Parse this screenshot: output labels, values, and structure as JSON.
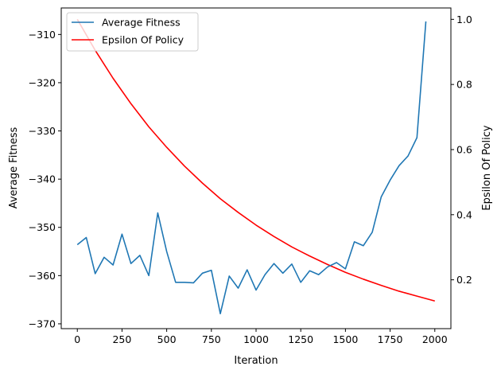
{
  "chart_data": {
    "type": "line",
    "xlabel": "Iteration",
    "ylabel_left": "Average Fitness",
    "ylabel_right": "Epsilon Of Policy",
    "xlim": [
      -90,
      2090
    ],
    "ylim_left": [
      -371,
      -304.5
    ],
    "ylim_right": [
      0.05,
      1.035
    ],
    "x_ticks": [
      0,
      250,
      500,
      750,
      1000,
      1250,
      1500,
      1750,
      2000
    ],
    "y_left_ticks": [
      -370,
      -360,
      -350,
      -340,
      -330,
      -320,
      -310
    ],
    "y_right_ticks": [
      0.2,
      0.4,
      0.6,
      0.8,
      1.0
    ],
    "legend_position": "top-left",
    "series": [
      {
        "name": "Average Fitness",
        "color": "#1f77b4",
        "axis": "left",
        "x": [
          0,
          50,
          100,
          150,
          200,
          250,
          300,
          350,
          400,
          450,
          500,
          550,
          600,
          650,
          700,
          750,
          800,
          850,
          900,
          950,
          1000,
          1050,
          1100,
          1150,
          1200,
          1250,
          1300,
          1350,
          1400,
          1450,
          1500,
          1550,
          1600,
          1650,
          1700,
          1750,
          1800,
          1850,
          1900,
          1950
        ],
        "values": [
          -353.6,
          -352.1,
          -359.6,
          -356.2,
          -357.8,
          -351.4,
          -357.5,
          -355.8,
          -360.0,
          -347.0,
          -355.0,
          -361.4,
          -361.4,
          -361.5,
          -359.5,
          -358.9,
          -367.9,
          -360.1,
          -362.6,
          -358.8,
          -363.0,
          -359.8,
          -357.5,
          -359.5,
          -357.6,
          -361.4,
          -359.0,
          -359.8,
          -358.2,
          -357.3,
          -358.6,
          -353.0,
          -353.8,
          -351.0,
          -343.7,
          -340.2,
          -337.2,
          -335.2,
          -331.4,
          -307.3
        ]
      },
      {
        "name": "Epsilon Of Policy",
        "color": "#ff0000",
        "axis": "right",
        "x": [
          0,
          100,
          200,
          300,
          400,
          500,
          600,
          700,
          800,
          900,
          1000,
          1100,
          1200,
          1300,
          1400,
          1500,
          1600,
          1700,
          1800,
          1900,
          2000
        ],
        "values": [
          1.0,
          0.905,
          0.819,
          0.741,
          0.67,
          0.607,
          0.549,
          0.497,
          0.449,
          0.407,
          0.368,
          0.333,
          0.301,
          0.273,
          0.247,
          0.223,
          0.202,
          0.183,
          0.165,
          0.15,
          0.135
        ]
      }
    ]
  }
}
